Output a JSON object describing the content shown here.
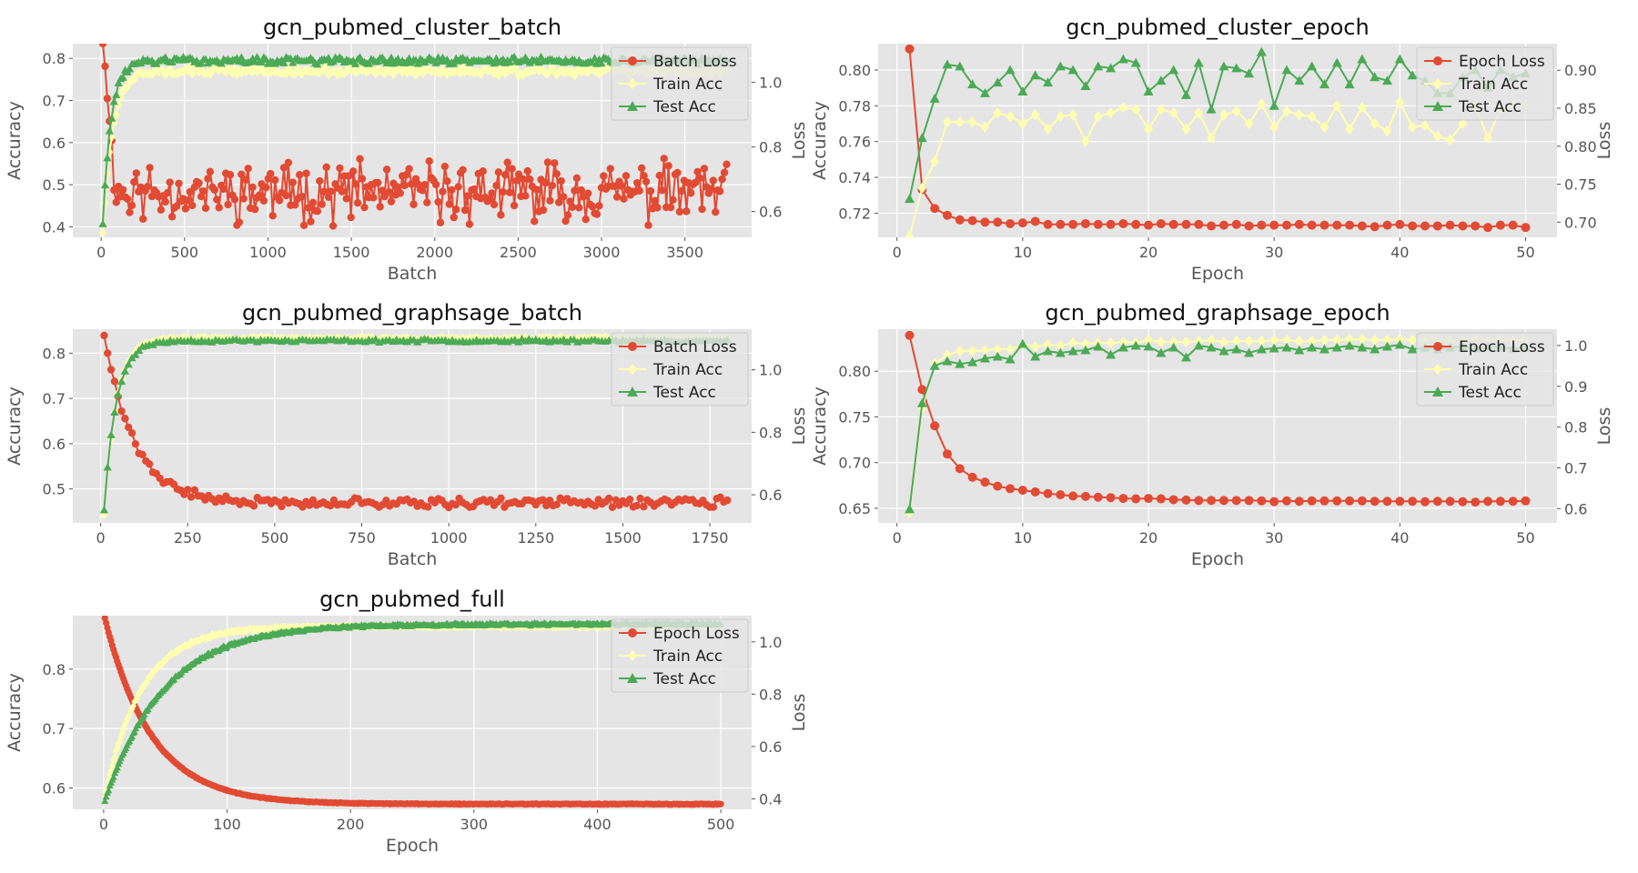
{
  "figure": {
    "colors": {
      "loss": "#E24A33",
      "train": "#FFFFB0",
      "test": "#4BAA55",
      "panel_bg": "#E5E5E5",
      "grid": "#FFFFFF",
      "text": "#555555"
    }
  },
  "chart_data": [
    {
      "type": "line",
      "title": "gcn_pubmed_cluster_batch",
      "xlabel": "Batch",
      "ylabel_left": "Accuracy",
      "ylabel_right": "Loss",
      "xlim": [
        -170,
        3900
      ],
      "ylim_left": [
        0.375,
        0.835
      ],
      "ylim_right": [
        0.52,
        1.12
      ],
      "xticks": [
        0,
        500,
        1000,
        1500,
        2000,
        2500,
        3000,
        3500
      ],
      "yticks_left": [
        0.4,
        0.5,
        0.6,
        0.7,
        0.8
      ],
      "yticks_right": [
        0.6,
        0.8,
        1.0
      ],
      "tick_decimals_left": 1,
      "tick_decimals_right": 1,
      "legend": {
        "placement": "top-right",
        "entries": [
          "Batch Loss",
          "Train Acc",
          "Test Acc"
        ]
      },
      "grid": true,
      "series": [
        {
          "name": "Batch Loss",
          "axis": "right",
          "marker": "circle",
          "gen": {
            "x_start": 10,
            "x_end": 3750,
            "n": 280,
            "kind": "noise",
            "head": [
              1.12,
              1.05,
              0.95,
              0.88,
              0.82
            ],
            "base": 0.66,
            "amp": 0.11,
            "seed": 11
          }
        },
        {
          "name": "Train Acc",
          "axis": "left",
          "marker": "diamond",
          "gen": {
            "x_start": 10,
            "x_end": 3750,
            "n": 280,
            "kind": "rise",
            "start": 0.39,
            "end": 0.77,
            "tau": 60,
            "amp": 0.012,
            "seed": 12
          }
        },
        {
          "name": "Test Acc",
          "axis": "left",
          "marker": "triangle",
          "gen": {
            "x_start": 10,
            "x_end": 3750,
            "n": 280,
            "kind": "rise",
            "start": 0.41,
            "end": 0.795,
            "tau": 50,
            "amp": 0.01,
            "seed": 13
          }
        }
      ]
    },
    {
      "type": "line",
      "title": "gcn_pubmed_cluster_epoch",
      "xlabel": "Epoch",
      "ylabel_left": "Accuracy",
      "ylabel_right": "Loss",
      "xlim": [
        -1.5,
        52.5
      ],
      "ylim_left": [
        0.7065,
        0.8147
      ],
      "ylim_right": [
        0.68,
        0.935
      ],
      "xticks": [
        0,
        10,
        20,
        30,
        40,
        50
      ],
      "yticks_left": [
        0.72,
        0.74,
        0.76,
        0.78,
        0.8
      ],
      "yticks_right": [
        0.7,
        0.75,
        0.8,
        0.85,
        0.9
      ],
      "tick_decimals_left": 2,
      "tick_decimals_right": 2,
      "legend": {
        "placement": "top-right",
        "entries": [
          "Epoch Loss",
          "Train Acc",
          "Test Acc"
        ]
      },
      "grid": true,
      "x": [
        1,
        2,
        3,
        4,
        5,
        6,
        7,
        8,
        9,
        10,
        11,
        12,
        13,
        14,
        15,
        16,
        17,
        18,
        19,
        20,
        21,
        22,
        23,
        24,
        25,
        26,
        27,
        28,
        29,
        30,
        31,
        32,
        33,
        34,
        35,
        36,
        37,
        38,
        39,
        40,
        41,
        42,
        43,
        44,
        45,
        46,
        47,
        48,
        49,
        50
      ],
      "series": [
        {
          "name": "Epoch Loss",
          "axis": "right",
          "marker": "circle",
          "values": [
            0.928,
            0.743,
            0.718,
            0.709,
            0.703,
            0.702,
            0.7,
            0.7,
            0.698,
            0.699,
            0.701,
            0.697,
            0.697,
            0.697,
            0.698,
            0.697,
            0.697,
            0.698,
            0.697,
            0.696,
            0.698,
            0.697,
            0.697,
            0.697,
            0.695,
            0.696,
            0.697,
            0.695,
            0.696,
            0.696,
            0.696,
            0.697,
            0.696,
            0.696,
            0.696,
            0.696,
            0.695,
            0.694,
            0.696,
            0.697,
            0.695,
            0.695,
            0.695,
            0.696,
            0.695,
            0.695,
            0.693,
            0.696,
            0.696,
            0.693
          ]
        },
        {
          "name": "Train Acc",
          "axis": "left",
          "marker": "diamond",
          "values": [
            0.707,
            0.734,
            0.749,
            0.771,
            0.771,
            0.771,
            0.768,
            0.776,
            0.774,
            0.77,
            0.775,
            0.767,
            0.774,
            0.775,
            0.76,
            0.774,
            0.776,
            0.779,
            0.778,
            0.767,
            0.778,
            0.776,
            0.767,
            0.776,
            0.762,
            0.775,
            0.777,
            0.77,
            0.781,
            0.768,
            0.777,
            0.775,
            0.774,
            0.768,
            0.78,
            0.767,
            0.779,
            0.77,
            0.766,
            0.782,
            0.768,
            0.769,
            0.763,
            0.761,
            0.77,
            0.78,
            0.762,
            0.778,
            0.78,
            0.78
          ]
        },
        {
          "name": "Test Acc",
          "axis": "left",
          "marker": "triangle",
          "values": [
            0.728,
            0.762,
            0.784,
            0.803,
            0.802,
            0.792,
            0.787,
            0.793,
            0.8,
            0.788,
            0.797,
            0.793,
            0.802,
            0.8,
            0.791,
            0.802,
            0.801,
            0.806,
            0.804,
            0.788,
            0.794,
            0.8,
            0.786,
            0.804,
            0.778,
            0.802,
            0.801,
            0.798,
            0.81,
            0.78,
            0.8,
            0.794,
            0.802,
            0.792,
            0.804,
            0.792,
            0.806,
            0.796,
            0.794,
            0.806,
            0.797,
            0.794,
            0.787,
            0.787,
            0.796,
            0.8,
            0.79,
            0.8,
            0.796,
            0.798
          ]
        }
      ]
    },
    {
      "type": "line",
      "title": "gcn_pubmed_graphsage_batch",
      "xlabel": "Batch",
      "ylabel_left": "Accuracy",
      "ylabel_right": "Loss",
      "xlim": [
        -80,
        1870
      ],
      "ylim_left": [
        0.425,
        0.853
      ],
      "ylim_right": [
        0.51,
        1.13
      ],
      "xticks": [
        0,
        250,
        500,
        750,
        1000,
        1250,
        1500,
        1750
      ],
      "yticks_left": [
        0.5,
        0.6,
        0.7,
        0.8
      ],
      "yticks_right": [
        0.6,
        0.8,
        1.0
      ],
      "tick_decimals_left": 1,
      "tick_decimals_right": 1,
      "legend": {
        "placement": "top-right",
        "entries": [
          "Batch Loss",
          "Train Acc",
          "Test Acc"
        ]
      },
      "grid": true,
      "series": [
        {
          "name": "Batch Loss",
          "axis": "right",
          "marker": "circle",
          "gen": {
            "x_start": 10,
            "x_end": 1800,
            "n": 180,
            "kind": "decay",
            "start": 1.12,
            "end": 0.575,
            "tau": 85,
            "amp": 0.018,
            "seed": 21
          }
        },
        {
          "name": "Train Acc",
          "axis": "left",
          "marker": "diamond",
          "gen": {
            "x_start": 10,
            "x_end": 1800,
            "n": 180,
            "kind": "rise",
            "start": 0.445,
            "end": 0.833,
            "tau": 35,
            "amp": 0.004,
            "seed": 22
          }
        },
        {
          "name": "Test Acc",
          "axis": "left",
          "marker": "triangle",
          "gen": {
            "x_start": 10,
            "x_end": 1800,
            "n": 180,
            "kind": "rise",
            "start": 0.455,
            "end": 0.828,
            "tau": 35,
            "amp": 0.004,
            "seed": 23
          }
        }
      ]
    },
    {
      "type": "line",
      "title": "gcn_pubmed_graphsage_epoch",
      "xlabel": "Epoch",
      "ylabel_left": "Accuracy",
      "ylabel_right": "Loss",
      "xlim": [
        -1.5,
        52.5
      ],
      "ylim_left": [
        0.634,
        0.846
      ],
      "ylim_right": [
        0.565,
        1.04
      ],
      "xticks": [
        0,
        10,
        20,
        30,
        40,
        50
      ],
      "yticks_left": [
        0.65,
        0.7,
        0.75,
        0.8
      ],
      "yticks_right": [
        0.6,
        0.7,
        0.8,
        0.9,
        1.0
      ],
      "tick_decimals_left": 2,
      "tick_decimals_right": 1,
      "legend": {
        "placement": "top-right",
        "entries": [
          "Epoch Loss",
          "Train Acc",
          "Test Acc"
        ]
      },
      "grid": true,
      "x": [
        1,
        2,
        3,
        4,
        5,
        6,
        7,
        8,
        9,
        10,
        11,
        12,
        13,
        14,
        15,
        16,
        17,
        18,
        19,
        20,
        21,
        22,
        23,
        24,
        25,
        26,
        27,
        28,
        29,
        30,
        31,
        32,
        33,
        34,
        35,
        36,
        37,
        38,
        39,
        40,
        41,
        42,
        43,
        44,
        45,
        46,
        47,
        48,
        49,
        50
      ],
      "series": [
        {
          "name": "Epoch Loss",
          "axis": "right",
          "marker": "circle",
          "values": [
            1.025,
            0.892,
            0.803,
            0.734,
            0.698,
            0.677,
            0.665,
            0.655,
            0.649,
            0.645,
            0.641,
            0.637,
            0.634,
            0.631,
            0.63,
            0.628,
            0.627,
            0.625,
            0.624,
            0.625,
            0.624,
            0.622,
            0.621,
            0.62,
            0.62,
            0.62,
            0.62,
            0.62,
            0.619,
            0.617,
            0.619,
            0.618,
            0.619,
            0.619,
            0.619,
            0.619,
            0.619,
            0.618,
            0.618,
            0.618,
            0.618,
            0.617,
            0.618,
            0.618,
            0.617,
            0.616,
            0.618,
            0.618,
            0.618,
            0.619
          ]
        },
        {
          "name": "Train Acc",
          "axis": "left",
          "marker": "diamond",
          "values": [
            0.645,
            0.76,
            0.808,
            0.818,
            0.822,
            0.822,
            0.823,
            0.824,
            0.824,
            0.829,
            0.827,
            0.829,
            0.828,
            0.831,
            0.83,
            0.831,
            0.831,
            0.832,
            0.831,
            0.834,
            0.832,
            0.832,
            0.832,
            0.833,
            0.834,
            0.832,
            0.833,
            0.833,
            0.833,
            0.834,
            0.834,
            0.833,
            0.833,
            0.834,
            0.834,
            0.835,
            0.835,
            0.834,
            0.834,
            0.835,
            0.834,
            0.835,
            0.835,
            0.834,
            0.834,
            0.835,
            0.834,
            0.835,
            0.834,
            0.835
          ]
        },
        {
          "name": "Test Acc",
          "axis": "left",
          "marker": "triangle",
          "values": [
            0.649,
            0.765,
            0.806,
            0.811,
            0.808,
            0.81,
            0.814,
            0.816,
            0.813,
            0.83,
            0.816,
            0.822,
            0.82,
            0.822,
            0.823,
            0.827,
            0.818,
            0.826,
            0.828,
            0.827,
            0.82,
            0.826,
            0.815,
            0.828,
            0.826,
            0.822,
            0.824,
            0.82,
            0.824,
            0.825,
            0.826,
            0.823,
            0.826,
            0.824,
            0.826,
            0.828,
            0.826,
            0.824,
            0.827,
            0.829,
            0.824,
            0.826,
            0.824,
            0.826,
            0.827,
            0.825,
            0.827,
            0.826,
            0.825,
            0.826
          ]
        }
      ]
    },
    {
      "type": "line",
      "title": "gcn_pubmed_full",
      "xlabel": "Epoch",
      "ylabel_left": "Accuracy",
      "ylabel_right": "Loss",
      "xlim": [
        -25,
        525
      ],
      "ylim_left": [
        0.564,
        0.89
      ],
      "ylim_right": [
        0.36,
        1.1
      ],
      "xticks": [
        0,
        100,
        200,
        300,
        400,
        500
      ],
      "yticks_left": [
        0.6,
        0.7,
        0.8
      ],
      "yticks_right": [
        0.4,
        0.6,
        0.8,
        1.0
      ],
      "tick_decimals_left": 1,
      "tick_decimals_right": 1,
      "legend": {
        "placement": "top-right",
        "entries": [
          "Epoch Loss",
          "Train Acc",
          "Test Acc"
        ]
      },
      "grid": true,
      "series": [
        {
          "name": "Epoch Loss",
          "axis": "right",
          "marker": "circle",
          "gen": {
            "x_start": 1,
            "x_end": 500,
            "n": 500,
            "kind": "decay",
            "start": 1.09,
            "end": 0.38,
            "tau": 38,
            "amp": 0.002,
            "seed": 51
          }
        },
        {
          "name": "Train Acc",
          "axis": "left",
          "marker": "diamond",
          "gen": {
            "x_start": 1,
            "x_end": 500,
            "n": 500,
            "kind": "rise",
            "start": 0.585,
            "end": 0.872,
            "tau": 30,
            "amp": 0.003,
            "seed": 52
          }
        },
        {
          "name": "Test Acc",
          "axis": "left",
          "marker": "triangle",
          "gen": {
            "x_start": 1,
            "x_end": 500,
            "n": 500,
            "kind": "rise",
            "start": 0.58,
            "end": 0.876,
            "tau": 48,
            "amp": 0.003,
            "seed": 53
          }
        }
      ]
    }
  ]
}
